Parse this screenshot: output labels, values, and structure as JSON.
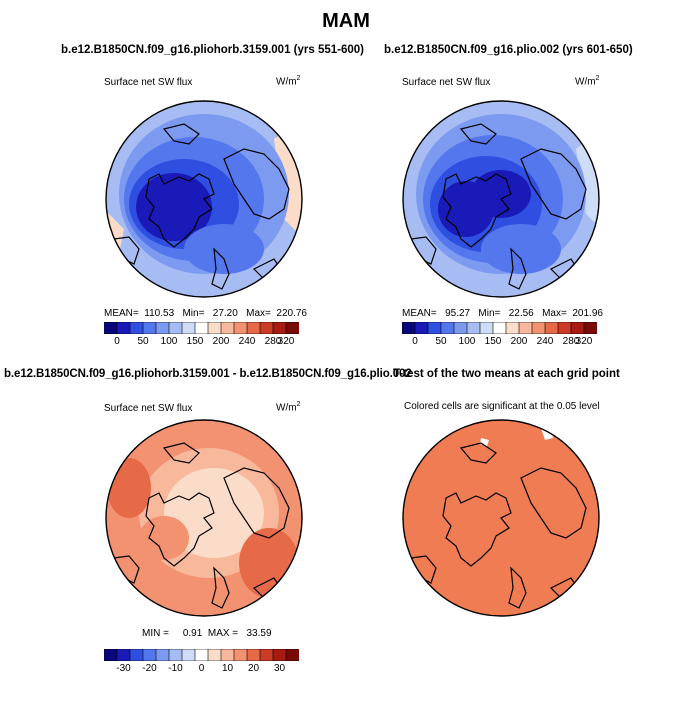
{
  "title": "MAM",
  "panels": {
    "top_left": {
      "run": "b.e12.B1850CN.f09_g16.pliohorb.3159.001 (yrs 551-600)",
      "variable": "Surface net SW flux",
      "units_base": "W/m",
      "units_exp": "2",
      "stats": "MEAN=  110.53   Min=   27.20   Max=  220.76"
    },
    "top_right": {
      "run": "b.e12.B1850CN.f09_g16.plio.002 (yrs 601-650)",
      "variable": "Surface net SW flux",
      "units_base": "W/m",
      "units_exp": "2",
      "stats": "MEAN=   95.27   Min=   22.56   Max=  201.96"
    },
    "bottom_left": {
      "run": "b.e12.B1850CN.f09_g16.pliohorb.3159.001 - b.e12.B1850CN.f09_g16.plio.002",
      "variable": "Surface net SW flux",
      "units_base": "W/m",
      "units_exp": "2",
      "stats": "MIN =     0.91  MAX =   33.59"
    },
    "bottom_right": {
      "run": "T-test of the two means at each grid point",
      "note": "Colored cells are significant at the 0.05 level"
    }
  },
  "colorbars": {
    "absolute": {
      "colors": [
        "#08087a",
        "#1a1ab8",
        "#2f4fe0",
        "#5577ee",
        "#7c9af0",
        "#a6bcf3",
        "#cfdcf7",
        "#ffffff",
        "#fbdcc9",
        "#f7b89b",
        "#f29271",
        "#e66a48",
        "#cc3b26",
        "#a81b12",
        "#7a0a08"
      ],
      "ticks": [
        "0",
        "50",
        "100",
        "150",
        "200",
        "240",
        "280",
        "320"
      ]
    },
    "difference": {
      "colors": [
        "#08087a",
        "#1a1ab8",
        "#2f4fe0",
        "#5577ee",
        "#7c9af0",
        "#a6bcf3",
        "#cfdcf7",
        "#ffffff",
        "#fbdcc9",
        "#f7b89b",
        "#f29271",
        "#e66a48",
        "#cc3b26",
        "#a81b12",
        "#7a0a08"
      ],
      "ticks": [
        "-30",
        "-20",
        "-10",
        "0",
        "10",
        "20",
        "30"
      ]
    }
  },
  "map_colors": {
    "ocean_pale_blue": "#cfdcf7",
    "mid_blue": "#7c9af0",
    "deep_blue": "#2f4fe0",
    "core_blue": "#1a1ab8",
    "diff_orange": "#f29271",
    "diff_light": "#f7b89b",
    "diff_pale": "#fbdcc9",
    "ttest_orange": "#ef7c52"
  }
}
